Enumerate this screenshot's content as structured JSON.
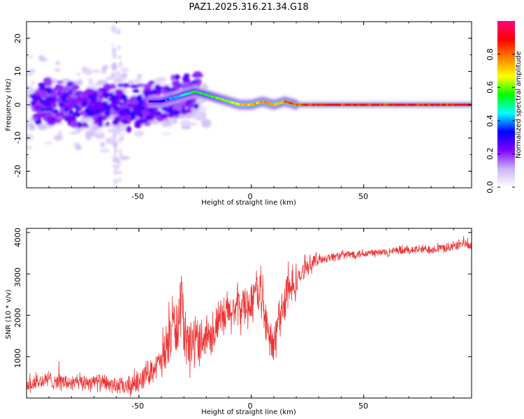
{
  "title": "PAZ1.2025.316.21.34.G18",
  "chart_data": [
    {
      "type": "heatmap",
      "title": "PAZ1.2025.316.21.34.G18",
      "xlabel": "Height of straight line (km)",
      "ylabel": "Frequency (Hz)",
      "xlim": [
        -100,
        98
      ],
      "ylim": [
        -25,
        25
      ],
      "xticks": [
        -50,
        0,
        50
      ],
      "xticklabels": [
        "-50",
        "0",
        "50"
      ],
      "yticks": [
        -20,
        -10,
        0,
        10,
        20
      ],
      "yticklabels": [
        "-20",
        "-10",
        "0",
        "10",
        "20"
      ],
      "ridge": {
        "description": "frequency of peak spectral amplitude vs height",
        "x": [
          -100,
          -90,
          -80,
          -70,
          -60,
          -50,
          -45,
          -40,
          -35,
          -30,
          -25,
          -20,
          -15,
          -10,
          -5,
          0,
          5,
          10,
          15,
          20,
          25,
          50,
          75,
          98
        ],
        "frequency": [
          0,
          1,
          0,
          -1,
          0,
          -1,
          1,
          1,
          2,
          3,
          4,
          3,
          2,
          1,
          0,
          0,
          1,
          0,
          1,
          0,
          0,
          0,
          0,
          0
        ],
        "amplitude": [
          0.2,
          0.2,
          0.22,
          0.2,
          0.2,
          0.22,
          0.3,
          0.35,
          0.45,
          0.5,
          0.55,
          0.6,
          0.65,
          0.7,
          0.75,
          0.8,
          0.8,
          0.8,
          0.85,
          0.9,
          0.95,
          0.95,
          0.95,
          0.95
        ]
      },
      "colorbar": {
        "label": "Normalized spectral amplitude",
        "range": [
          0,
          1
        ],
        "ticks": [
          0.0,
          0.2,
          0.4,
          0.6,
          0.8
        ],
        "ticklabels": [
          "0.0",
          "0.2",
          "0.4",
          "0.6",
          "0.8"
        ],
        "colormap": [
          "#ffffff",
          "#c9b3f5",
          "#7f00ff",
          "#0000ff",
          "#00ffff",
          "#00ff00",
          "#ffff00",
          "#ff8000",
          "#ff0000",
          "#ff0080"
        ]
      }
    },
    {
      "type": "line",
      "xlabel": "Height of straight line (km)",
      "ylabel": "SNR (10 * v/v)",
      "xlim": [
        -100,
        98
      ],
      "ylim": [
        0,
        4100
      ],
      "xticks": [
        -50,
        0,
        50
      ],
      "xticklabels": [
        "-50",
        "0",
        "50"
      ],
      "yticks": [
        1000,
        2000,
        3000,
        4000
      ],
      "yticklabels": [
        "1000",
        "2000",
        "3000",
        "4000"
      ],
      "series": [
        {
          "name": "SNR",
          "color": "#ee3333",
          "x": [
            -100,
            -90,
            -80,
            -70,
            -60,
            -55,
            -50,
            -45,
            -40,
            -38,
            -35,
            -32,
            -31,
            -30,
            -25,
            -20,
            -15,
            -10,
            -5,
            0,
            3,
            5,
            6,
            8,
            10,
            12,
            15,
            20,
            25,
            30,
            40,
            50,
            60,
            70,
            80,
            90,
            94,
            98
          ],
          "y": [
            300,
            450,
            350,
            400,
            300,
            250,
            450,
            650,
            900,
            1100,
            1800,
            1600,
            2700,
            1200,
            1400,
            1500,
            1750,
            2050,
            2200,
            2300,
            2700,
            2500,
            1900,
            1400,
            1200,
            1900,
            2400,
            2800,
            3200,
            3350,
            3450,
            3500,
            3520,
            3580,
            3600,
            3650,
            3750,
            3650
          ]
        }
      ]
    }
  ]
}
